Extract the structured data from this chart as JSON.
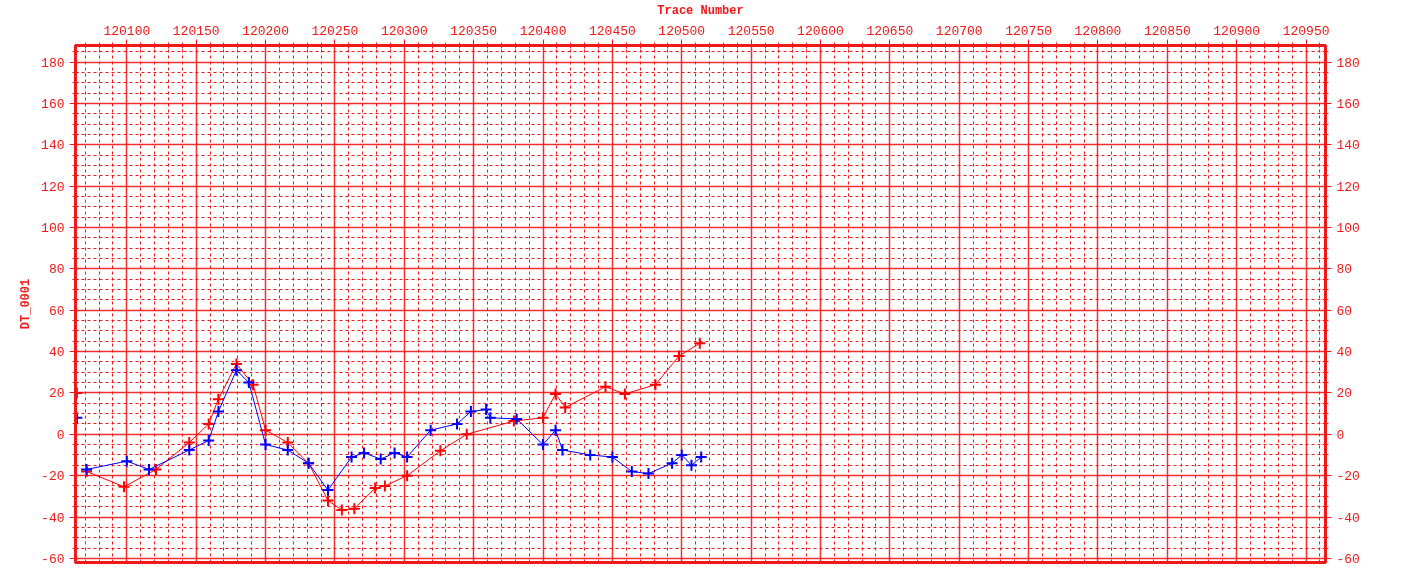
{
  "chart_data": {
    "type": "line",
    "xlabel": "Trace Number",
    "ylabel": "DT_0001",
    "xlim": [
      120063,
      120964
    ],
    "ylim": [
      -62,
      188
    ],
    "y2lim": [
      -62,
      188
    ],
    "xticks": [
      {
        "value": 120070,
        "label": null
      },
      {
        "value": 120080,
        "label": null
      },
      {
        "value": 120090,
        "label": null
      },
      120100,
      {
        "value": 120110,
        "label": null
      },
      {
        "value": 120120,
        "label": null
      },
      {
        "value": 120130,
        "label": null
      },
      {
        "value": 120140,
        "label": null
      },
      120150,
      {
        "value": 120160,
        "label": null
      },
      {
        "value": 120170,
        "label": null
      },
      {
        "value": 120180,
        "label": null
      },
      {
        "value": 120190,
        "label": null
      },
      120200,
      {
        "value": 120210,
        "label": null
      },
      {
        "value": 120220,
        "label": null
      },
      {
        "value": 120230,
        "label": null
      },
      {
        "value": 120240,
        "label": null
      },
      120250,
      {
        "value": 120260,
        "label": null
      },
      {
        "value": 120270,
        "label": null
      },
      {
        "value": 120280,
        "label": null
      },
      {
        "value": 120290,
        "label": null
      },
      120300,
      {
        "value": 120310,
        "label": null
      },
      {
        "value": 120320,
        "label": null
      },
      {
        "value": 120330,
        "label": null
      },
      {
        "value": 120340,
        "label": null
      },
      120350,
      {
        "value": 120360,
        "label": null
      },
      {
        "value": 120370,
        "label": null
      },
      {
        "value": 120380,
        "label": null
      },
      {
        "value": 120390,
        "label": null
      },
      120400,
      {
        "value": 120410,
        "label": null
      },
      {
        "value": 120420,
        "label": null
      },
      {
        "value": 120430,
        "label": null
      },
      {
        "value": 120440,
        "label": null
      },
      120450,
      {
        "value": 120460,
        "label": null
      },
      {
        "value": 120470,
        "label": null
      },
      {
        "value": 120480,
        "label": null
      },
      {
        "value": 120490,
        "label": null
      },
      120500,
      {
        "value": 120510,
        "label": null
      },
      {
        "value": 120520,
        "label": null
      },
      {
        "value": 120530,
        "label": null
      },
      {
        "value": 120540,
        "label": null
      },
      120550,
      {
        "value": 120560,
        "label": null
      },
      {
        "value": 120570,
        "label": null
      },
      {
        "value": 120580,
        "label": null
      },
      {
        "value": 120590,
        "label": null
      },
      120600,
      {
        "value": 120610,
        "label": null
      },
      {
        "value": 120620,
        "label": null
      },
      {
        "value": 120630,
        "label": null
      },
      {
        "value": 120640,
        "label": null
      },
      120650,
      {
        "value": 120660,
        "label": null
      },
      {
        "value": 120670,
        "label": null
      },
      {
        "value": 120680,
        "label": null
      },
      {
        "value": 120690,
        "label": null
      },
      120700,
      {
        "value": 120710,
        "label": null
      },
      {
        "value": 120720,
        "label": null
      },
      {
        "value": 120730,
        "label": null
      },
      {
        "value": 120740,
        "label": null
      },
      120750,
      {
        "value": 120760,
        "label": null
      },
      {
        "value": 120770,
        "label": null
      },
      {
        "value": 120780,
        "label": null
      },
      {
        "value": 120790,
        "label": null
      },
      120800,
      {
        "value": 120810,
        "label": null
      },
      {
        "value": 120820,
        "label": null
      },
      {
        "value": 120830,
        "label": null
      },
      {
        "value": 120840,
        "label": null
      },
      120850,
      {
        "value": 120860,
        "label": null
      },
      {
        "value": 120870,
        "label": null
      },
      {
        "value": 120880,
        "label": null
      },
      {
        "value": 120890,
        "label": null
      },
      120900,
      {
        "value": 120910,
        "label": null
      },
      {
        "value": 120920,
        "label": null
      },
      {
        "value": 120930,
        "label": null
      },
      {
        "value": 120940,
        "label": null
      },
      120950,
      {
        "value": 120960,
        "label": null
      }
    ],
    "yticks": [
      -60,
      {
        "value": -55,
        "label": null
      },
      {
        "value": -50,
        "label": null
      },
      {
        "value": -45,
        "label": null
      },
      -40,
      {
        "value": -35,
        "label": null
      },
      {
        "value": -30,
        "label": null
      },
      {
        "value": -25,
        "label": null
      },
      -20,
      {
        "value": -15,
        "label": null
      },
      {
        "value": -10,
        "label": null
      },
      {
        "value": -5,
        "label": null
      },
      0,
      {
        "value": 5,
        "label": null
      },
      {
        "value": 10,
        "label": null
      },
      {
        "value": 15,
        "label": null
      },
      20,
      {
        "value": 25,
        "label": null
      },
      {
        "value": 30,
        "label": null
      },
      {
        "value": 35,
        "label": null
      },
      40,
      {
        "value": 45,
        "label": null
      },
      {
        "value": 50,
        "label": null
      },
      {
        "value": 55,
        "label": null
      },
      60,
      {
        "value": 65,
        "label": null
      },
      {
        "value": 70,
        "label": null
      },
      {
        "value": 75,
        "label": null
      },
      80,
      {
        "value": 85,
        "label": null
      },
      {
        "value": 90,
        "label": null
      },
      {
        "value": 95,
        "label": null
      },
      100,
      {
        "value": 105,
        "label": null
      },
      {
        "value": 110,
        "label": null
      },
      {
        "value": 115,
        "label": null
      },
      120,
      {
        "value": 125,
        "label": null
      },
      {
        "value": 130,
        "label": null
      },
      {
        "value": 135,
        "label": null
      },
      140,
      {
        "value": 145,
        "label": null
      },
      {
        "value": 150,
        "label": null
      },
      {
        "value": 155,
        "label": null
      },
      160,
      {
        "value": 165,
        "label": null
      },
      {
        "value": 170,
        "label": null
      },
      {
        "value": 175,
        "label": null
      },
      180,
      {
        "value": 185,
        "label": null
      }
    ],
    "y2ticks": [
      -60,
      {
        "value": -55,
        "label": null
      },
      {
        "value": -50,
        "label": null
      },
      {
        "value": -45,
        "label": null
      },
      -40,
      {
        "value": -35,
        "label": null
      },
      {
        "value": -30,
        "label": null
      },
      {
        "value": -25,
        "label": null
      },
      -20,
      {
        "value": -15,
        "label": null
      },
      {
        "value": -10,
        "label": null
      },
      {
        "value": -5,
        "label": null
      },
      0,
      {
        "value": 5,
        "label": null
      },
      {
        "value": 10,
        "label": null
      },
      {
        "value": 15,
        "label": null
      },
      20,
      {
        "value": 25,
        "label": null
      },
      {
        "value": 30,
        "label": null
      },
      {
        "value": 35,
        "label": null
      },
      40,
      {
        "value": 45,
        "label": null
      },
      {
        "value": 50,
        "label": null
      },
      {
        "value": 55,
        "label": null
      },
      60,
      {
        "value": 65,
        "label": null
      },
      {
        "value": 70,
        "label": null
      },
      {
        "value": 75,
        "label": null
      },
      80,
      {
        "value": 85,
        "label": null
      },
      {
        "value": 90,
        "label": null
      },
      {
        "value": 95,
        "label": null
      },
      100,
      {
        "value": 105,
        "label": null
      },
      {
        "value": 110,
        "label": null
      },
      {
        "value": 115,
        "label": null
      },
      120,
      {
        "value": 125,
        "label": null
      },
      {
        "value": 130,
        "label": null
      },
      {
        "value": 135,
        "label": null
      },
      140,
      {
        "value": 145,
        "label": null
      },
      {
        "value": 150,
        "label": null
      },
      {
        "value": 155,
        "label": null
      },
      160,
      {
        "value": 165,
        "label": null
      },
      {
        "value": 170,
        "label": null
      },
      {
        "value": 175,
        "label": null
      },
      180,
      {
        "value": 185,
        "label": null
      }
    ],
    "grid": true,
    "series": [
      {
        "color": "#ff0000",
        "marker": "cross",
        "x": [
          120064,
          120066,
          120071,
          120098,
          120121,
          120145,
          120159,
          120166,
          120179,
          120191,
          120200,
          120216,
          120231,
          120245,
          120255,
          120264,
          120279,
          120286,
          120302,
          120326,
          120345,
          120379,
          120400,
          120409,
          120416,
          120445,
          120459,
          120481,
          120498,
          120513
        ],
        "values": [
          20,
          null,
          -18,
          -25.4,
          -17,
          -4,
          5,
          17,
          34,
          24,
          2,
          -4,
          -14,
          -32,
          -36.6,
          -36,
          -26,
          -25,
          -20,
          -8,
          0,
          6.4,
          8,
          19.5,
          13,
          23,
          19.5,
          24,
          37.8,
          44
        ]
      },
      {
        "color": "#0000ff",
        "marker": "cross",
        "x": [
          120064,
          120066,
          120071,
          120100,
          120116,
          120145,
          120159,
          120166,
          120179,
          120188,
          120200,
          120216,
          120231,
          120245,
          120262,
          120271,
          120283,
          120293,
          120302,
          120319,
          120338,
          120348,
          120359,
          120362,
          120381,
          120400,
          120409,
          120414,
          120434,
          120450,
          120464,
          120476,
          120493,
          120500,
          120507,
          120514
        ],
        "values": [
          8,
          null,
          -17,
          -13,
          -17,
          -7.6,
          -3,
          11,
          31,
          25,
          -5,
          -7.6,
          -14,
          -27,
          -11,
          -9,
          -12,
          -9,
          -11,
          2,
          5,
          11,
          12,
          8,
          7.4,
          -5,
          2,
          -7.6,
          -10,
          -11,
          -18,
          -19,
          -14,
          -10,
          -15,
          -11
        ]
      }
    ]
  }
}
